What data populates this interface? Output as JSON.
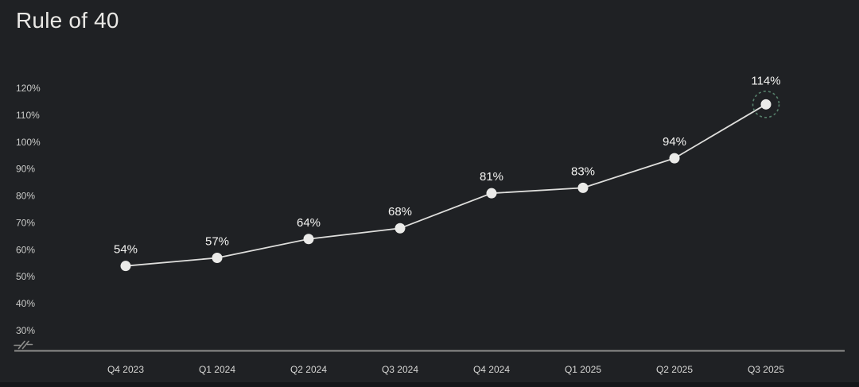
{
  "header": {
    "title": "Rule of 40"
  },
  "chart_data": {
    "type": "line",
    "title": "Rule of 40",
    "categories": [
      "Q4 2023",
      "Q1 2024",
      "Q2 2024",
      "Q3 2024",
      "Q4 2024",
      "Q1 2025",
      "Q2 2025",
      "Q3 2025"
    ],
    "values": [
      54,
      57,
      64,
      68,
      81,
      83,
      94,
      114
    ],
    "point_labels": [
      "54%",
      "57%",
      "64%",
      "68%",
      "81%",
      "83%",
      "94%",
      "114%"
    ],
    "y_ticks": [
      {
        "value": 120,
        "label": "120%"
      },
      {
        "value": 110,
        "label": "110%"
      },
      {
        "value": 100,
        "label": "100%"
      },
      {
        "value": 90,
        "label": "90%"
      },
      {
        "value": 80,
        "label": "80%"
      },
      {
        "value": 70,
        "label": "70%"
      },
      {
        "value": 60,
        "label": "60%"
      },
      {
        "value": 50,
        "label": "50%"
      },
      {
        "value": 40,
        "label": "40%"
      },
      {
        "value": 30,
        "label": "30%"
      }
    ],
    "ylim": [
      30,
      120
    ],
    "axis_break": true,
    "grid": false,
    "legend": false,
    "highlight_last_point": true,
    "colors": {
      "background": "#1f2124",
      "line": "#dededc",
      "point": "#ebebe9",
      "point_label": "#f3f3f1",
      "y_tick": "#c9cac8",
      "x_tick": "#d6d6d4",
      "axis": "#8d8d8b",
      "highlight_ring": "#56806b",
      "title": "#e9e8e5",
      "bottom_strip": "#141619"
    }
  }
}
